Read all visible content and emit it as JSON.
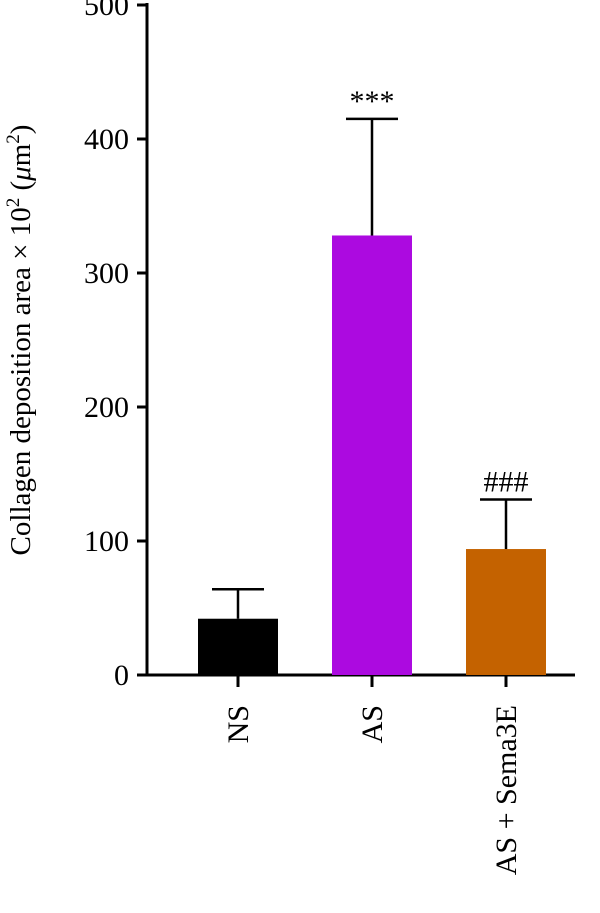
{
  "chart_data": {
    "type": "bar",
    "title": "",
    "xlabel": "",
    "ylabel": {
      "prefix": "Collagen deposition area × 10",
      "exp": "2",
      "unit_open": " (",
      "mu": "μ",
      "unit_mid": "m",
      "unit_exp": "2",
      "unit_close": ")"
    },
    "ylim": [
      0,
      500
    ],
    "yticks": [
      "0",
      "100",
      "200",
      "300",
      "400",
      "500"
    ],
    "categories": [
      "NS",
      "AS",
      "AS + Sema3E"
    ],
    "values": [
      42,
      328,
      94
    ],
    "errors": [
      22,
      87,
      37
    ],
    "significance": [
      "",
      "***",
      "###"
    ],
    "colors": [
      "#000000",
      "#ac0ae0",
      "#c46200"
    ],
    "grid": false
  }
}
